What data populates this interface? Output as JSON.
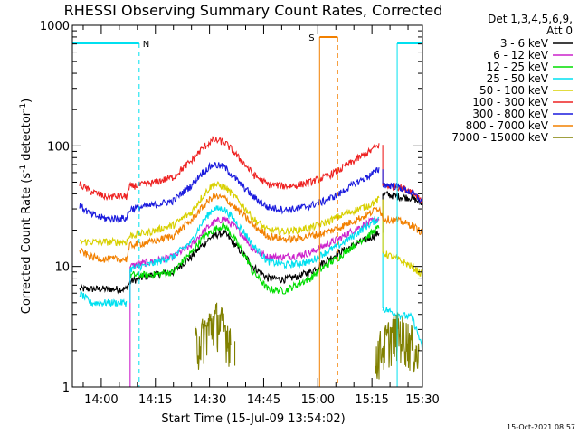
{
  "chart_data": {
    "type": "line",
    "title": "RHESSI Observing Summary Count Rates, Corrected",
    "xlabel": "Start Time (15-Jul-09 13:54:02)",
    "ylabel_main": "Corrected Count Rate (s",
    "ylabel_sup1": "-1",
    "ylabel_mid": " detector",
    "ylabel_sup2": "-1",
    "ylabel_end": ")",
    "y_scale": "log",
    "ylim": [
      1,
      1000
    ],
    "y_ticks": [
      {
        "value": 1,
        "label": "1"
      },
      {
        "value": 10,
        "label": "10"
      },
      {
        "value": 100,
        "label": "100"
      },
      {
        "value": 1000,
        "label": "1000"
      }
    ],
    "xlim_minutes": [
      -2,
      95
    ],
    "x_ticks": [
      {
        "value": 6,
        "label": "14:00"
      },
      {
        "value": 21,
        "label": "14:15"
      },
      {
        "value": 36,
        "label": "14:30"
      },
      {
        "value": 51,
        "label": "14:45"
      },
      {
        "value": 66,
        "label": "15:00"
      },
      {
        "value": 81,
        "label": "15:15"
      },
      {
        "value": 96,
        "label": "15:30"
      }
    ],
    "legend_header": [
      "Det 1,3,4,5,6,9,",
      "Att 0"
    ],
    "legend_placement": "right",
    "timestamp": "15-Oct-2021 08:57",
    "annotations": {
      "night_label": "N",
      "saa_label": "S",
      "night_periods": [
        [
          -2,
          16.5
        ],
        [
          88,
          105
        ]
      ],
      "saa_period": [
        66.5,
        71.5
      ]
    },
    "series": [
      {
        "name": "3 - 6 keV",
        "color": "#000000",
        "x": [
          0,
          13,
          14,
          20,
          26,
          31,
          34,
          37,
          40,
          44,
          48,
          52,
          57,
          60,
          64,
          68,
          72,
          76,
          80,
          83,
          84,
          88,
          92,
          96
        ],
        "y": [
          6.5,
          6.5,
          7.5,
          8.5,
          9,
          12,
          15,
          18,
          19,
          14,
          10,
          8,
          7.8,
          8.2,
          9,
          11,
          13,
          15,
          17,
          19,
          40,
          38,
          37,
          32
        ]
      },
      {
        "name": "6 - 12 keV",
        "color": "#cc22cc",
        "x": [
          13,
          14,
          20,
          26,
          31,
          34,
          37,
          40,
          44,
          48,
          52,
          57,
          60,
          64,
          68,
          72,
          76,
          80,
          83
        ],
        "y": [
          1,
          10,
          11,
          12,
          15,
          19,
          23,
          25,
          20,
          14,
          12,
          12,
          12.3,
          13,
          15,
          17,
          20,
          23,
          25
        ]
      },
      {
        "name": "12 - 25 keV",
        "color": "#00dd00",
        "x": [
          14,
          20,
          26,
          31,
          34,
          37,
          40,
          44,
          48,
          52,
          57,
          60,
          64,
          68,
          72,
          76,
          80,
          83
        ],
        "y": [
          8.5,
          8.5,
          9,
          13,
          17,
          20,
          22,
          15,
          9,
          6.5,
          6.3,
          7,
          8,
          10,
          12,
          15,
          18,
          21
        ]
      },
      {
        "name": "25 - 50 keV",
        "color": "#00e0f0",
        "x": [
          0,
          3,
          7,
          10,
          13,
          14,
          20,
          26,
          31,
          34,
          37,
          40,
          44,
          48,
          52,
          57,
          60,
          64,
          68,
          72,
          76,
          80,
          83,
          84,
          88,
          92,
          95
        ],
        "y": [
          6,
          5,
          5,
          5,
          5,
          9.5,
          10.5,
          12,
          16,
          23,
          30,
          30,
          22,
          15,
          11,
          10.3,
          10.5,
          11,
          13,
          15,
          18,
          22,
          25,
          4.5,
          4,
          3.8,
          2
        ]
      },
      {
        "name": "50 - 100 keV",
        "color": "#d8d000",
        "x": [
          0,
          13,
          14,
          20,
          26,
          31,
          34,
          37,
          40,
          44,
          48,
          52,
          57,
          60,
          64,
          68,
          72,
          76,
          80,
          83,
          84,
          88,
          92,
          96
        ],
        "y": [
          16,
          16,
          18,
          19.5,
          22,
          28,
          38,
          48,
          46,
          35,
          25,
          20,
          19.5,
          20,
          21,
          23,
          26,
          29,
          32,
          36,
          13,
          11.5,
          10,
          8
        ]
      },
      {
        "name": "100 - 300 keV",
        "color": "#ee2222",
        "x": [
          0,
          3,
          7,
          10,
          13,
          14,
          20,
          26,
          31,
          34,
          37,
          40,
          44,
          48,
          52,
          57,
          60,
          64,
          68,
          72,
          76,
          80,
          83,
          84,
          88,
          92,
          96
        ],
        "y": [
          48,
          42,
          38,
          38,
          38,
          46,
          49,
          55,
          75,
          95,
          112,
          108,
          80,
          58,
          48,
          46.5,
          47,
          50,
          55,
          63,
          75,
          88,
          102,
          47,
          46,
          42,
          33
        ]
      },
      {
        "name": "300 - 800 keV",
        "color": "#1a1add",
        "x": [
          0,
          3,
          7,
          10,
          13,
          14,
          20,
          26,
          31,
          34,
          37,
          40,
          44,
          48,
          52,
          57,
          60,
          64,
          68,
          72,
          76,
          80,
          83,
          84,
          88,
          92,
          96
        ],
        "y": [
          32,
          27,
          25,
          25,
          25,
          30,
          32,
          35,
          47,
          60,
          70,
          67,
          50,
          38,
          31,
          29.5,
          30,
          32,
          35,
          40,
          48,
          56,
          64,
          48,
          46,
          41,
          32
        ]
      },
      {
        "name": "800 - 7000 keV",
        "color": "#f28000",
        "x": [
          0,
          3,
          7,
          10,
          13,
          14,
          20,
          26,
          31,
          34,
          37,
          40,
          44,
          48,
          52,
          57,
          60,
          64,
          68,
          72,
          76,
          80,
          83,
          84,
          88,
          92,
          96
        ],
        "y": [
          13.5,
          12,
          11.5,
          11.5,
          11.5,
          15,
          16,
          18,
          24,
          31,
          38,
          37,
          29,
          22,
          18,
          16.8,
          17,
          18,
          19,
          21,
          24,
          27,
          31,
          25,
          24,
          22,
          18
        ]
      },
      {
        "name": "7000 - 15000 keV",
        "color": "#808000",
        "x": [
          32,
          34,
          36,
          38,
          40,
          42,
          43
        ],
        "y": [
          2.2,
          2.6,
          3.2,
          3.6,
          3.1,
          2.4,
          1.5
        ],
        "x2": [
          82,
          84,
          86,
          88,
          90,
          92,
          94
        ],
        "y2": [
          1.8,
          2.2,
          2.6,
          2.9,
          2.6,
          2.3,
          1.7
        ]
      }
    ]
  }
}
